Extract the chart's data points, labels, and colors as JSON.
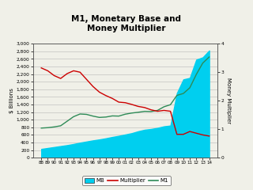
{
  "title": "M1, Monetary Base and\nMoney Multiplier",
  "ylabel_left": "$ Billions",
  "ylabel_right": "Money Multiplier",
  "years": [
    "88",
    "89",
    "90",
    "91",
    "92",
    "93",
    "94",
    "95",
    "96",
    "97",
    "98",
    "99",
    "00",
    "01",
    "02",
    "03",
    "04",
    "05",
    "06",
    "07",
    "08",
    "09",
    "10",
    "11",
    "12",
    "13",
    "14"
  ],
  "MB": [
    230,
    255,
    280,
    305,
    330,
    360,
    395,
    425,
    455,
    480,
    510,
    545,
    575,
    610,
    645,
    695,
    735,
    755,
    785,
    825,
    845,
    1700,
    2060,
    2100,
    2580,
    2640,
    2820
  ],
  "M1": [
    780,
    790,
    810,
    840,
    960,
    1080,
    1150,
    1140,
    1095,
    1060,
    1070,
    1100,
    1095,
    1145,
    1175,
    1195,
    1220,
    1215,
    1245,
    1340,
    1395,
    1640,
    1690,
    1840,
    2190,
    2490,
    2650
  ],
  "Multiplier": [
    3.15,
    3.05,
    2.88,
    2.78,
    2.95,
    3.05,
    3.0,
    2.75,
    2.5,
    2.3,
    2.18,
    2.08,
    1.95,
    1.93,
    1.87,
    1.8,
    1.76,
    1.68,
    1.63,
    1.66,
    1.63,
    0.82,
    0.82,
    0.92,
    0.86,
    0.8,
    0.76
  ],
  "ylim_left": [
    0,
    3000
  ],
  "ylim_right": [
    0,
    4
  ],
  "yticks_left": [
    0,
    200,
    400,
    600,
    800,
    1000,
    1200,
    1400,
    1600,
    1800,
    2000,
    2200,
    2400,
    2600,
    2800,
    3000
  ],
  "yticks_right": [
    0,
    1,
    2,
    3,
    4
  ],
  "mb_color": "#00CFEF",
  "m1_color": "#2E8B57",
  "multiplier_color": "#CC0000",
  "background_color": "#f0f0e8",
  "border_color": "#888888"
}
